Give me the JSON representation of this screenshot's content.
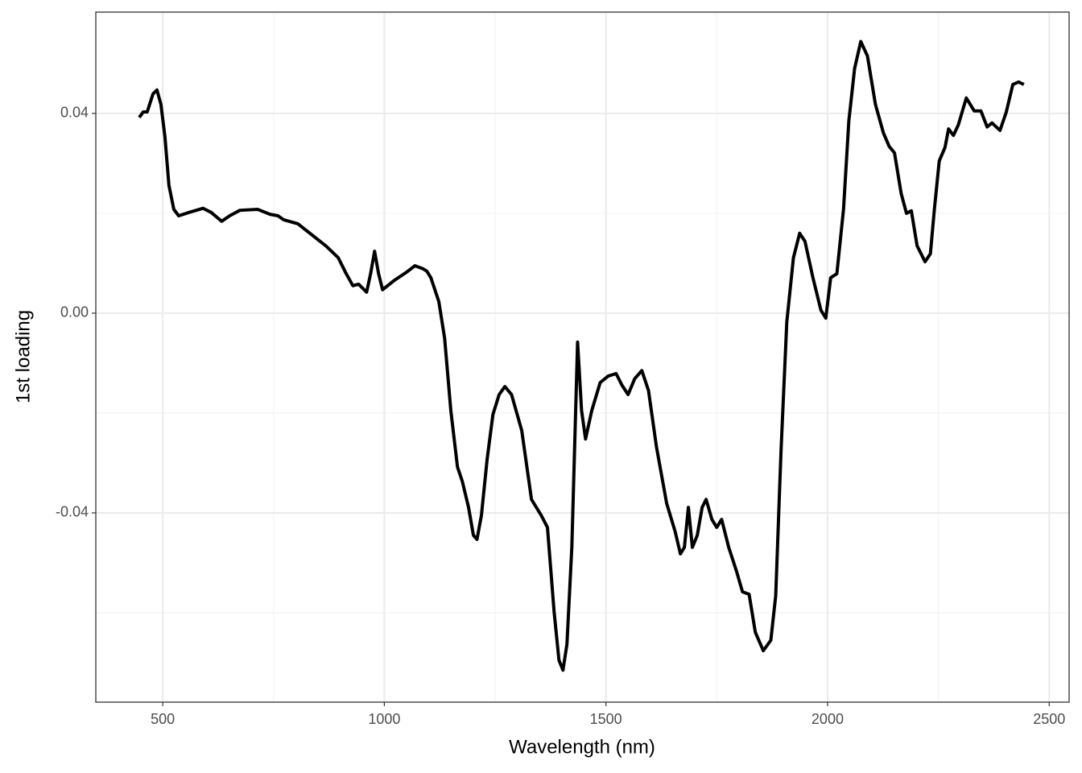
{
  "chart_data": {
    "type": "line",
    "x_label": "Wavelength (nm)",
    "y_label": "1st loading",
    "xlim": [
      349,
      2545
    ],
    "ylim": [
      -0.0779,
      0.0603
    ],
    "xticks": [
      500,
      1000,
      1500,
      2000,
      2500
    ],
    "yticks": [
      -0.04,
      {
        "value": 0,
        "label": "0.00"
      },
      0.04
    ],
    "grid": true,
    "series": [
      {
        "color": "#000000",
        "x": [
          447,
          456,
          465,
          478,
          487,
          496,
          505,
          514,
          525,
          536,
          560,
          591,
          609,
          633,
          651,
          674,
          714,
          742,
          760,
          773,
          805,
          832,
          869,
          896,
          914,
          929,
          942,
          960,
          969,
          978,
          987,
          996,
          1023,
          1050,
          1069,
          1087,
          1096,
          1105,
          1123,
          1136,
          1150,
          1165,
          1176,
          1190,
          1201,
          1209,
          1219,
          1232,
          1245,
          1259,
          1272,
          1287,
          1310,
          1332,
          1354,
          1368,
          1383,
          1394,
          1403,
          1412,
          1423,
          1436,
          1445,
          1454,
          1468,
          1487,
          1505,
          1523,
          1536,
          1550,
          1565,
          1581,
          1596,
          1614,
          1637,
          1656,
          1668,
          1677,
          1686,
          1695,
          1706,
          1717,
          1726,
          1739,
          1750,
          1761,
          1777,
          1795,
          1808,
          1823,
          1837,
          1855,
          1872,
          1883,
          1895,
          1908,
          1923,
          1937,
          1949,
          1967,
          1985,
          1996,
          2007,
          2021,
          2036,
          2048,
          2061,
          2075,
          2090,
          2108,
          2126,
          2139,
          2151,
          2166,
          2178,
          2189,
          2202,
          2220,
          2232,
          2241,
          2252,
          2265,
          2273,
          2284,
          2295,
          2313,
          2331,
          2346,
          2360,
          2371,
          2389,
          2403,
          2418,
          2431,
          2443
        ],
        "values": [
          0.0392,
          0.0403,
          0.0403,
          0.0439,
          0.0447,
          0.0418,
          0.0353,
          0.0256,
          0.0208,
          0.0195,
          0.0202,
          0.021,
          0.0202,
          0.0184,
          0.0195,
          0.0206,
          0.0208,
          0.0198,
          0.0195,
          0.0187,
          0.0179,
          0.016,
          0.0134,
          0.0111,
          0.0079,
          0.0055,
          0.0058,
          0.0042,
          0.0079,
          0.0124,
          0.0079,
          0.0047,
          0.0066,
          0.0082,
          0.0095,
          0.0089,
          0.0084,
          0.0071,
          0.0023,
          -0.005,
          -0.0195,
          -0.0308,
          -0.0337,
          -0.0389,
          -0.0445,
          -0.0453,
          -0.0405,
          -0.0292,
          -0.0203,
          -0.0163,
          -0.0147,
          -0.0163,
          -0.0235,
          -0.0373,
          -0.0405,
          -0.0429,
          -0.0598,
          -0.0695,
          -0.0715,
          -0.0663,
          -0.0469,
          -0.0058,
          -0.0195,
          -0.0252,
          -0.0195,
          -0.0139,
          -0.0126,
          -0.0121,
          -0.0144,
          -0.0163,
          -0.0131,
          -0.0115,
          -0.0155,
          -0.0268,
          -0.0381,
          -0.0437,
          -0.0482,
          -0.0469,
          -0.0389,
          -0.0469,
          -0.0445,
          -0.0389,
          -0.0373,
          -0.0413,
          -0.0429,
          -0.0413,
          -0.0469,
          -0.0518,
          -0.0558,
          -0.0563,
          -0.0639,
          -0.0676,
          -0.0655,
          -0.0566,
          -0.0276,
          -0.0018,
          0.0111,
          0.016,
          0.0144,
          0.0071,
          0.0006,
          -0.001,
          0.0071,
          0.0079,
          0.0208,
          0.0385,
          0.049,
          0.0544,
          0.0515,
          0.0418,
          0.0361,
          0.0334,
          0.0321,
          0.024,
          0.02,
          0.0205,
          0.0135,
          0.0103,
          0.0119,
          0.0208,
          0.0305,
          0.0332,
          0.0369,
          0.0356,
          0.0377,
          0.0431,
          0.0405,
          0.0405,
          0.0373,
          0.0381,
          0.0366,
          0.0402,
          0.0458,
          0.0463,
          0.0458
        ]
      }
    ]
  }
}
